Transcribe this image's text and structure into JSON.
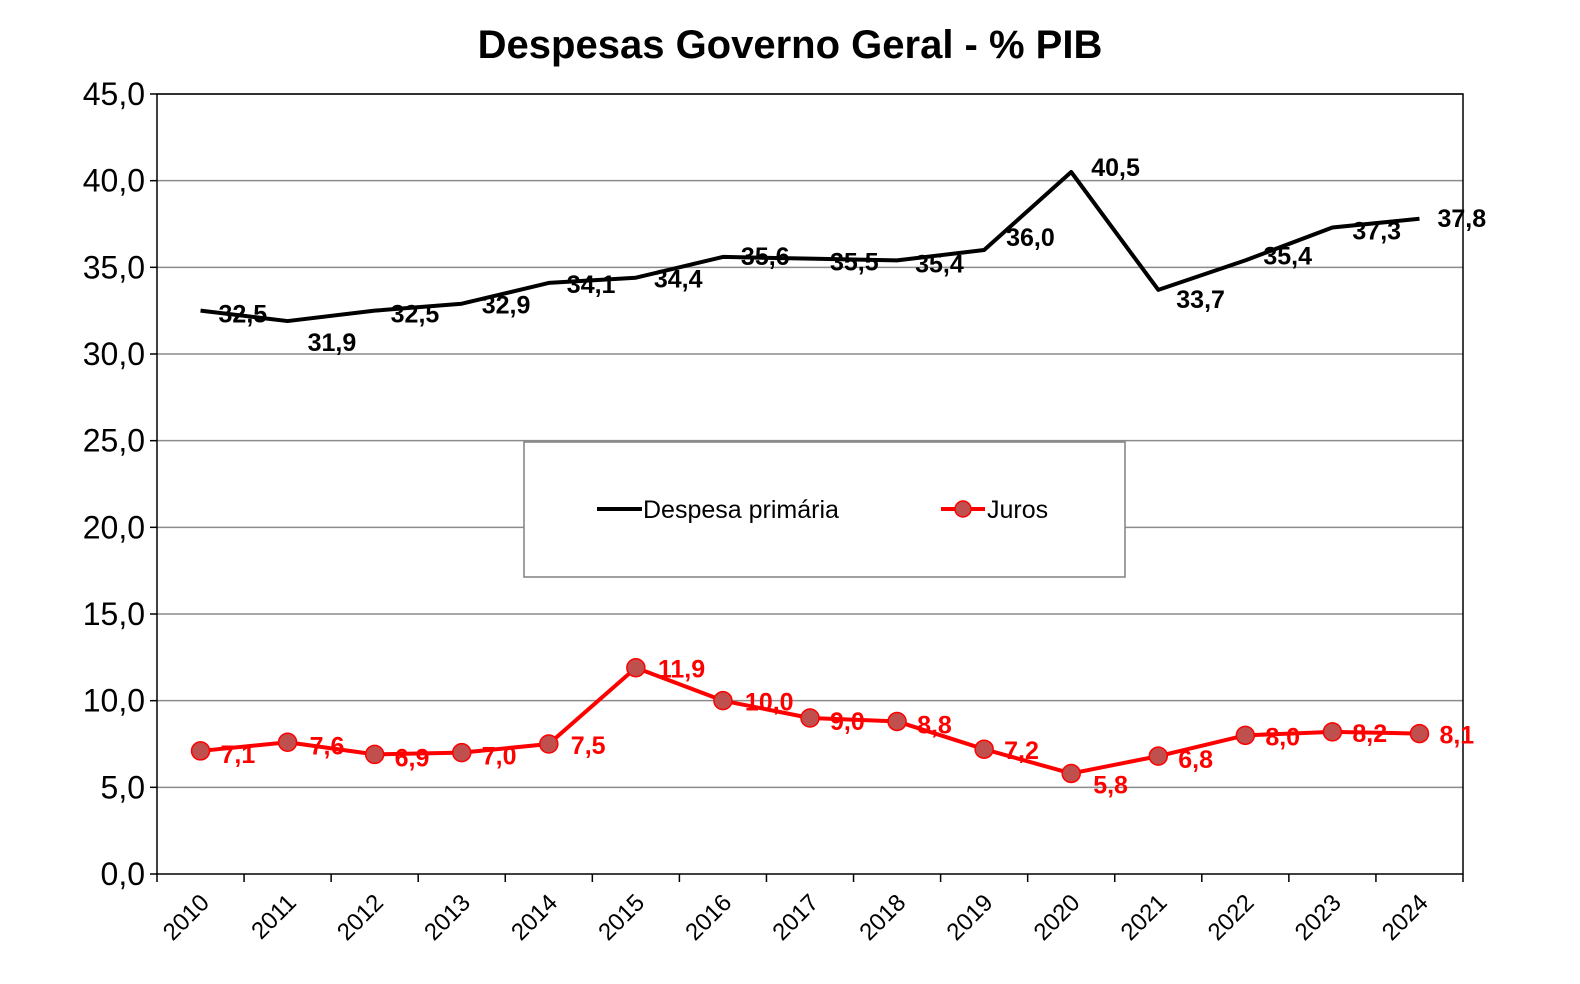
{
  "chart_data": {
    "type": "line",
    "title": "Despesas Governo Geral - % PIB",
    "xlabel": "",
    "ylabel": "",
    "categories": [
      "2010",
      "2011",
      "2012",
      "2013",
      "2014",
      "2015",
      "2016",
      "2017",
      "2018",
      "2019",
      "2020",
      "2021",
      "2022",
      "2023",
      "2024"
    ],
    "ylim": [
      0,
      45
    ],
    "yticks": [
      "0,0",
      "5,0",
      "10,0",
      "15,0",
      "20,0",
      "25,0",
      "30,0",
      "35,0",
      "40,0",
      "45,0"
    ],
    "grid": true,
    "legend_position": "center",
    "series": [
      {
        "name": "Despesa primária",
        "color": "#000000",
        "marker": "none",
        "values": [
          32.5,
          31.9,
          32.5,
          32.9,
          34.1,
          34.4,
          35.6,
          35.5,
          35.4,
          36.0,
          40.5,
          33.7,
          35.4,
          37.3,
          37.8
        ],
        "labels": [
          "32,5",
          "31,9",
          "32,5",
          "32,9",
          "34,1",
          "34,4",
          "35,6",
          "35,5",
          "35,4",
          "36,0",
          "40,5",
          "33,7",
          "35,4",
          "37,3",
          "37,8"
        ]
      },
      {
        "name": "Juros",
        "color": "#ff0000",
        "marker": "circle",
        "marker_fill": "#c0504d",
        "values": [
          7.1,
          7.6,
          6.9,
          7.0,
          7.5,
          11.9,
          10.0,
          9.0,
          8.8,
          7.2,
          5.8,
          6.8,
          8.0,
          8.2,
          8.1
        ],
        "labels": [
          "7,1",
          "7,6",
          "6,9",
          "7,0",
          "7,5",
          "11,9",
          "10,0",
          "9,0",
          "8,8",
          "7,2",
          "5,8",
          "6,8",
          "8,0",
          "8,2",
          "8,1"
        ]
      }
    ]
  }
}
